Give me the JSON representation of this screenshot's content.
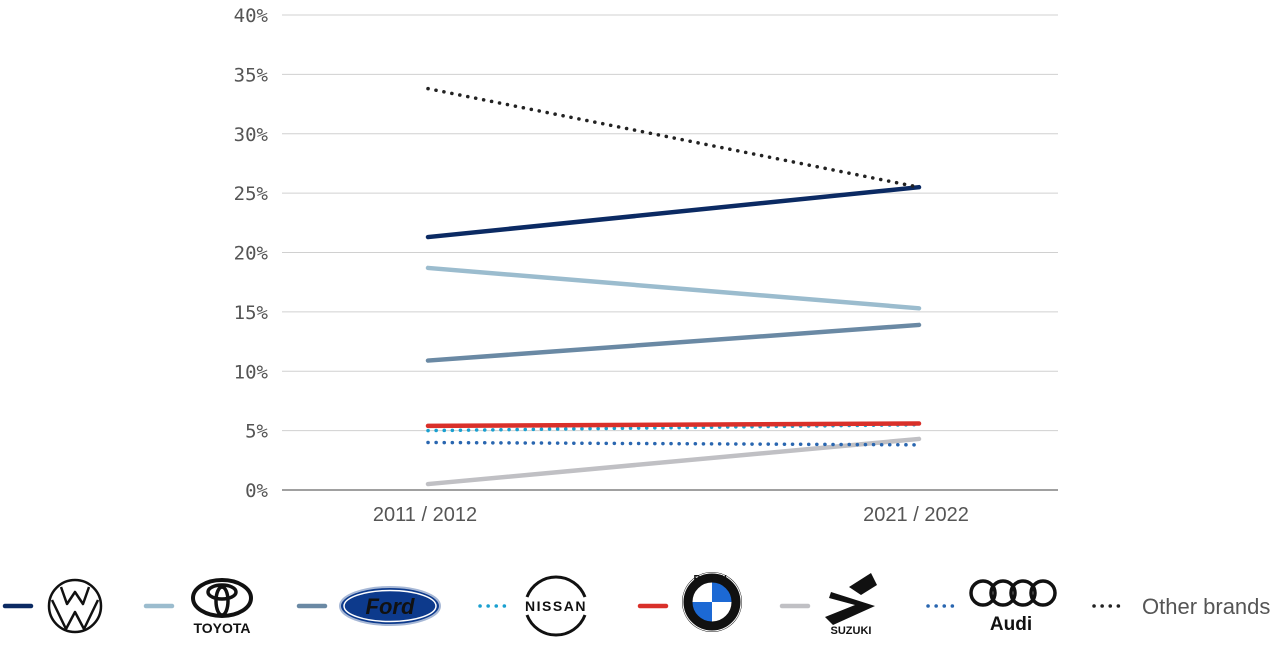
{
  "chart_data": {
    "type": "line",
    "categories": [
      "2011 / 2012",
      "2021 / 2022"
    ],
    "ylim": [
      0,
      40
    ],
    "yticks": [
      0,
      5,
      10,
      15,
      20,
      25,
      30,
      35,
      40
    ],
    "ytick_labels": [
      "0%",
      "5%",
      "10%",
      "15%",
      "20%",
      "25%",
      "30%",
      "35%",
      "40%"
    ],
    "grid": true,
    "legend_position": "bottom",
    "series": [
      {
        "key": "vw",
        "legend_icon": "volkswagen-logo",
        "color": "#0b2a63",
        "dash": "solid",
        "values": [
          21.3,
          25.5
        ]
      },
      {
        "key": "toyota",
        "legend_icon": "toyota-logo",
        "legend_text": "TOYOTA",
        "color": "#9bbcce",
        "dash": "solid",
        "values": [
          18.7,
          15.3
        ]
      },
      {
        "key": "ford",
        "legend_icon": "ford-logo",
        "legend_text": "Ford",
        "color": "#6a89a4",
        "dash": "solid",
        "values": [
          10.9,
          13.9
        ]
      },
      {
        "key": "nissan",
        "legend_icon": "nissan-logo",
        "legend_text": "NISSAN",
        "color": "#1aa0d0",
        "dash": "dotted",
        "values": [
          5.0,
          5.5
        ]
      },
      {
        "key": "bmw",
        "legend_icon": "bmw-logo",
        "legend_text": "BMW",
        "color": "#d9302a",
        "dash": "solid",
        "values": [
          5.4,
          5.6
        ]
      },
      {
        "key": "suzuki",
        "legend_icon": "suzuki-logo",
        "legend_text": "SUZUKI",
        "color": "#c0c0c4",
        "dash": "solid",
        "values": [
          0.5,
          4.3
        ]
      },
      {
        "key": "audi",
        "legend_icon": "audi-logo",
        "legend_text": "Audi",
        "color": "#2966b0",
        "dash": "dotted",
        "values": [
          4.0,
          3.8
        ]
      },
      {
        "key": "other",
        "name": "Other brands",
        "color": "#222222",
        "dash": "dotted",
        "values": [
          33.8,
          25.5
        ]
      }
    ]
  }
}
